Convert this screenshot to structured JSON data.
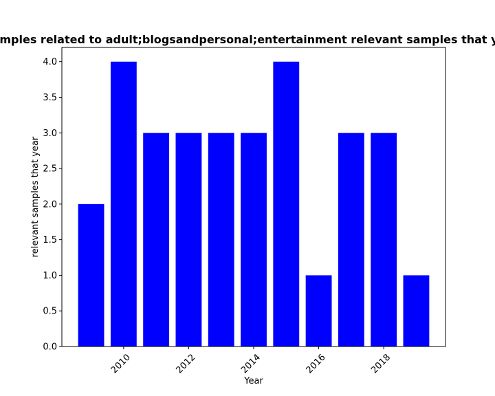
{
  "chart_data": {
    "type": "bar",
    "title": "Number of samples related to adult;blogsandpersonal;entertainment relevant samples that year in Pakistan",
    "xlabel": "Year",
    "ylabel": "relevant samples that year",
    "x": [
      2009,
      2010,
      2011,
      2012,
      2013,
      2014,
      2015,
      2016,
      2017,
      2018,
      2019
    ],
    "values": [
      2,
      4,
      3,
      3,
      3,
      3,
      4,
      1,
      3,
      3,
      1
    ],
    "xlim": [
      2008.1,
      2019.9
    ],
    "ylim": [
      0,
      4.2
    ],
    "xticks": [
      2010,
      2012,
      2014,
      2016,
      2018
    ],
    "yticks": [
      0.0,
      0.5,
      1.0,
      1.5,
      2.0,
      2.5,
      3.0,
      3.5,
      4.0
    ],
    "bar_color": "#0000ff",
    "grid": false
  }
}
